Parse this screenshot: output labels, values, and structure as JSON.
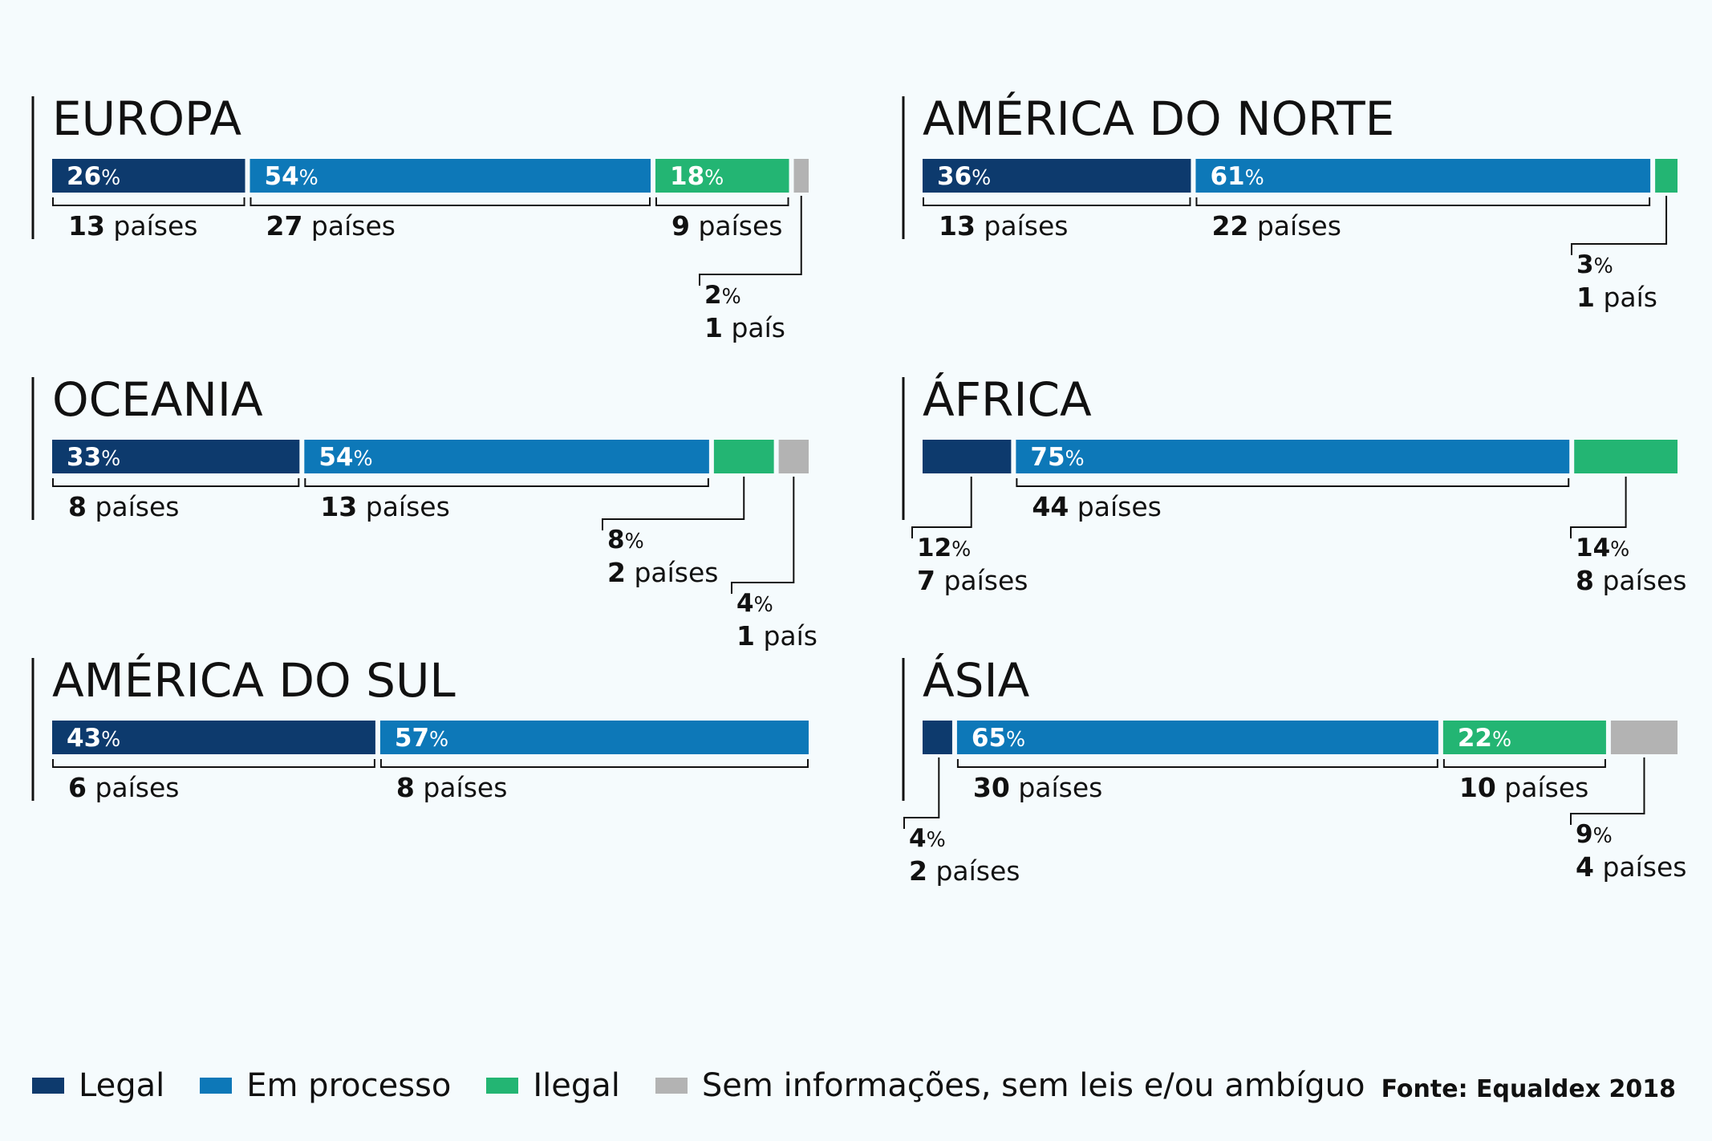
{
  "colors": {
    "legal": "#0d3a6d",
    "em_processo": "#0d78b8",
    "ilegal": "#23b573",
    "sem_info": "#b3b3b3"
  },
  "legend": [
    {
      "key": "legal",
      "label": "Legal"
    },
    {
      "key": "em_processo",
      "label": "Em processo"
    },
    {
      "key": "ilegal",
      "label": "Ilegal"
    },
    {
      "key": "sem_info",
      "label": "Sem informações, sem leis e/ou ambíguo"
    }
  ],
  "source": "Fonte: Equaldex 2018",
  "chart_data": [
    {
      "type": "bar",
      "region": "EUROPA",
      "segments": [
        {
          "category": "legal",
          "percent": 26,
          "pct_label": "26",
          "count_label": "13 países",
          "pct_inside": true
        },
        {
          "category": "em_processo",
          "percent": 54,
          "pct_label": "54",
          "count_label": "27 países",
          "pct_inside": true
        },
        {
          "category": "ilegal",
          "percent": 18,
          "pct_label": "18",
          "count_label": "9 países",
          "pct_inside": true
        },
        {
          "category": "sem_info",
          "percent": 2,
          "pct_label": "2",
          "count_label": "1 país",
          "pct_inside": false
        }
      ]
    },
    {
      "type": "bar",
      "region": "AMÉRICA DO NORTE",
      "segments": [
        {
          "category": "legal",
          "percent": 36,
          "pct_label": "36",
          "count_label": "13 países",
          "pct_inside": true
        },
        {
          "category": "em_processo",
          "percent": 61,
          "pct_label": "61",
          "count_label": "22 países",
          "pct_inside": true
        },
        {
          "category": "ilegal",
          "percent": 3,
          "pct_label": "3",
          "count_label": "1 país",
          "pct_inside": false
        }
      ]
    },
    {
      "type": "bar",
      "region": "OCEANIA",
      "segments": [
        {
          "category": "legal",
          "percent": 33,
          "pct_label": "33",
          "count_label": "8 países",
          "pct_inside": true
        },
        {
          "category": "em_processo",
          "percent": 54,
          "pct_label": "54",
          "count_label": "13 países",
          "pct_inside": true
        },
        {
          "category": "ilegal",
          "percent": 8,
          "pct_label": "8",
          "count_label": "2 países",
          "pct_inside": false
        },
        {
          "category": "sem_info",
          "percent": 4,
          "pct_label": "4",
          "count_label": "1 país",
          "pct_inside": false
        }
      ]
    },
    {
      "type": "bar",
      "region": "ÁFRICA",
      "segments": [
        {
          "category": "legal",
          "percent": 12,
          "pct_label": "12",
          "count_label": "7 países",
          "pct_inside": false
        },
        {
          "category": "em_processo",
          "percent": 75,
          "pct_label": "75",
          "count_label": "44 países",
          "pct_inside": true
        },
        {
          "category": "ilegal",
          "percent": 14,
          "pct_label": "14",
          "count_label": "8 países",
          "pct_inside": false
        }
      ]
    },
    {
      "type": "bar",
      "region": "AMÉRICA DO SUL",
      "segments": [
        {
          "category": "legal",
          "percent": 43,
          "pct_label": "43",
          "count_label": "6 países",
          "pct_inside": true
        },
        {
          "category": "em_processo",
          "percent": 57,
          "pct_label": "57",
          "count_label": "8 países",
          "pct_inside": true
        }
      ]
    },
    {
      "type": "bar",
      "region": "ÁSIA",
      "segments": [
        {
          "category": "legal",
          "percent": 4,
          "pct_label": "4",
          "count_label": "2 países",
          "pct_inside": false
        },
        {
          "category": "em_processo",
          "percent": 65,
          "pct_label": "65",
          "count_label": "30 países",
          "pct_inside": true
        },
        {
          "category": "ilegal",
          "percent": 22,
          "pct_label": "22",
          "count_label": "10 países",
          "pct_inside": true
        },
        {
          "category": "sem_info",
          "percent": 9,
          "pct_label": "9",
          "count_label": "4 países",
          "pct_inside": false
        }
      ]
    }
  ]
}
